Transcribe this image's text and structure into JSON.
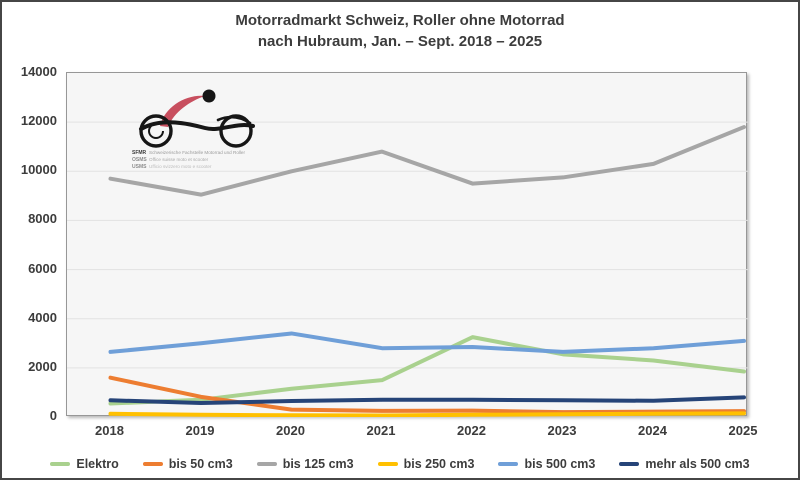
{
  "window": {
    "title_line1": "Motorradmarkt Schweiz, Roller ohne Motorrad",
    "title_line2": "nach Hubraum, Jan. – Sept. 2018 – 2025"
  },
  "logo": {
    "rows": [
      {
        "abbr": "SFMR",
        "text": "Schweizerische Fachstelle Motorrad und Roller"
      },
      {
        "abbr": "OSMS",
        "text": "Office suisse moto et scooter"
      },
      {
        "abbr": "USMS",
        "text": "Ufficio svizzero moto e scooter"
      }
    ]
  },
  "chart_data": {
    "type": "line",
    "title": "Motorradmarkt Schweiz, Roller ohne Motorrad nach Hubraum, Jan. – Sept. 2018 – 2025",
    "categories": [
      "2018",
      "2019",
      "2020",
      "2021",
      "2022",
      "2023",
      "2024",
      "2025"
    ],
    "xlabel": "",
    "ylabel": "",
    "ylim": [
      0,
      14000
    ],
    "ytick_step": 2000,
    "grid": true,
    "legend_position": "bottom",
    "colors": {
      "plot_background": "#f6f6f6",
      "gridline": "#e2e2e2",
      "text": "#3c3c3c"
    },
    "series": [
      {
        "name": "Elektro",
        "color": "#a9d18e",
        "values": [
          550,
          700,
          1150,
          1500,
          3250,
          2550,
          2300,
          1850
        ]
      },
      {
        "name": "bis 50 cm3",
        "color": "#ed7d31",
        "values": [
          1600,
          820,
          300,
          250,
          260,
          200,
          220,
          240
        ]
      },
      {
        "name": "bis 125 cm3",
        "color": "#a6a6a6",
        "values": [
          9700,
          9050,
          10000,
          10800,
          9500,
          9750,
          10300,
          11800
        ]
      },
      {
        "name": "bis 250 cm3",
        "color": "#ffc000",
        "values": [
          130,
          90,
          70,
          60,
          90,
          110,
          130,
          150
        ]
      },
      {
        "name": "bis 500 cm3",
        "color": "#6f9fd8",
        "values": [
          2650,
          3000,
          3400,
          2800,
          2850,
          2650,
          2800,
          3100
        ]
      },
      {
        "name": "mehr als 500 cm3",
        "color": "#264478",
        "values": [
          680,
          570,
          650,
          700,
          700,
          680,
          660,
          800
        ]
      }
    ]
  }
}
